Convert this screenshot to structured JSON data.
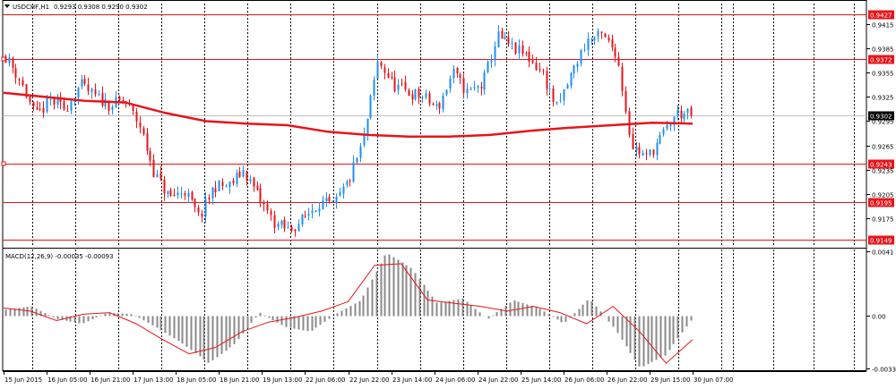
{
  "chart_data": [
    {
      "type": "candlestick",
      "title": "USDCHF,H1",
      "ohlc_label": "0.9293 0.9308 0.9290 0.9302",
      "ylim": [
        0.914,
        0.944
      ],
      "y_ticks": [
        "0.9415",
        "0.9385",
        "0.9355",
        "0.9325",
        "0.9295",
        "0.9265",
        "0.9235",
        "0.9205",
        "0.9175"
      ],
      "y_tick_values": [
        0.9415,
        0.9385,
        0.9355,
        0.9325,
        0.9295,
        0.9265,
        0.9235,
        0.9205,
        0.9175
      ],
      "current_price": "0.9302",
      "horizontal_levels": [
        {
          "label": "0.9427",
          "value": 0.9427
        },
        {
          "label": "0.9372",
          "value": 0.9372
        },
        {
          "label": "0.9243",
          "value": 0.9243
        },
        {
          "label": "0.9195",
          "value": 0.9195
        },
        {
          "label": "0.9149",
          "value": 0.9149
        }
      ],
      "x_labels": [
        "15 Jun 2015",
        "16 Jun 05:00",
        "16 Jun 21:00",
        "17 Jun 13:00",
        "18 Jun 05:00",
        "18 Jun 21:00",
        "19 Jun 13:00",
        "22 Jun 06:00",
        "22 Jun 22:00",
        "23 Jun 14:00",
        "24 Jun 06:00",
        "24 Jun 22:00",
        "25 Jun 14:00",
        "26 Jun 06:00",
        "26 Jun 22:00",
        "29 Jun 15:00",
        "30 Jun 07:00"
      ],
      "price_path": [
        0.9375,
        0.9345,
        0.93,
        0.932,
        0.931,
        0.934,
        0.9325,
        0.9315,
        0.932,
        0.929,
        0.923,
        0.92,
        0.921,
        0.9175,
        0.9215,
        0.9215,
        0.9235,
        0.92,
        0.917,
        0.916,
        0.9175,
        0.9195,
        0.919,
        0.922,
        0.927,
        0.937,
        0.934,
        0.933,
        0.9325,
        0.931,
        0.9355,
        0.933,
        0.934,
        0.94,
        0.9385,
        0.9375,
        0.9355,
        0.931,
        0.9355,
        0.9395,
        0.94,
        0.938,
        0.9265,
        0.925,
        0.9275,
        0.9305,
        0.9302
      ],
      "moving_average": {
        "color": "#e8141a",
        "values": [
          0.933,
          0.9325,
          0.932,
          0.9318,
          0.9305,
          0.9295,
          0.9292,
          0.929,
          0.9282,
          0.9278,
          0.9276,
          0.9276,
          0.9278,
          0.9283,
          0.9287,
          0.929,
          0.9293,
          0.9292
        ]
      }
    },
    {
      "type": "bar",
      "title": "MACD(12,26,9) -0.00035 -0.00093",
      "ylim": [
        -0.0035,
        0.0042
      ],
      "y_ticks": [
        "0.0041",
        "0.00",
        "-0.00334"
      ],
      "y_tick_values": [
        0.0041,
        0.0,
        -0.00334
      ],
      "histogram_path": [
        0.0004,
        0.0006,
        -0.0002,
        -0.0005,
        0.0002,
        0.0001,
        -0.0008,
        -0.0018,
        -0.003,
        -0.0018,
        0.0002,
        -0.0007,
        -0.001,
        0.0001,
        0.001,
        0.004,
        0.003,
        0.0008,
        0.0011,
        -0.0002,
        0.001,
        0.0005,
        -0.0005,
        0.0011,
        -0.0008,
        -0.0033,
        -0.0025,
        -0.0003
      ],
      "signal": {
        "color": "#e8141a",
        "values": [
          0.0005,
          0.0003,
          -0.0003,
          0.0001,
          0.0002,
          -0.0005,
          -0.0015,
          -0.0024,
          -0.002,
          -0.001,
          -0.0004,
          -0.0001,
          0.0003,
          0.0009,
          0.0032,
          0.0033,
          0.001,
          0.0008,
          0.0006,
          0.0003,
          0.0006,
          0.0002,
          -0.0005,
          0.0006,
          -0.001,
          -0.003,
          -0.0015
        ]
      }
    }
  ],
  "colors": {
    "bull": "#1e8ff0",
    "bear": "#e8141a",
    "level_line": "#e8141a",
    "grid": "#000000",
    "macd_bars": "#8a8a8a",
    "current_price_bg": "#000000"
  }
}
